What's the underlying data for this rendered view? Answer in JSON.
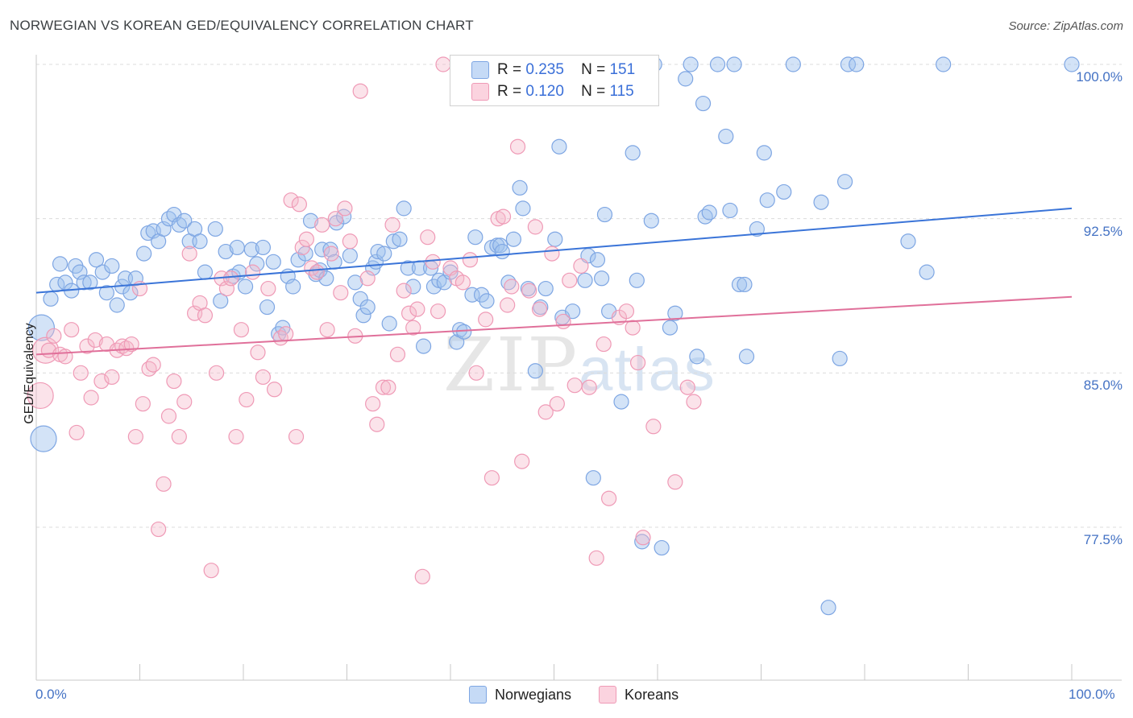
{
  "title": "NORWEGIAN VS KOREAN GED/EQUIVALENCY CORRELATION CHART",
  "source": "Source: ZipAtlas.com",
  "watermark": {
    "zip": "ZIP",
    "atlas": "atlas"
  },
  "legend": {
    "r_label": "R =",
    "n_label": "N =",
    "rows": [
      {
        "r": "0.235",
        "n": "151",
        "color": "#a9c8f0"
      },
      {
        "r": "0.120",
        "n": "115",
        "color": "#f6b8cb"
      }
    ]
  },
  "bottom_legend": [
    {
      "label": "Norwegians",
      "color": "#a9c8f0"
    },
    {
      "label": "Koreans",
      "color": "#f6b8cb"
    }
  ],
  "chart_data": {
    "type": "scatter",
    "title": "NORWEGIAN VS KOREAN GED/EQUIVALENCY CORRELATION CHART",
    "xlabel": "",
    "ylabel": "GED/Equivalency",
    "xlim": [
      0,
      100
    ],
    "ylim": [
      70.5,
      101.2
    ],
    "x_tick_labels": [
      "0.0%",
      "100.0%"
    ],
    "y_ticks": [
      100.0,
      92.5,
      85.0,
      77.5
    ],
    "y_tick_labels": [
      "100.0%",
      "92.5%",
      "85.0%",
      "77.5%"
    ],
    "series": [
      {
        "name": "Norwegians",
        "color": "#3a74d8",
        "fill": "rgba(157,192,238,0.45)",
        "stroke": "#7ea6e3",
        "trend": [
          [
            0,
            88.9
          ],
          [
            100,
            93.0
          ]
        ],
        "points": [
          [
            0.5,
            87.2
          ],
          [
            0.7,
            81.8
          ],
          [
            1.4,
            88.6
          ],
          [
            2,
            89.3
          ],
          [
            2.3,
            90.3
          ],
          [
            2.8,
            89.4
          ],
          [
            3.4,
            89.0
          ],
          [
            3.8,
            90.2
          ],
          [
            4.2,
            89.9
          ],
          [
            4.6,
            89.4
          ],
          [
            5.2,
            89.4
          ],
          [
            5.8,
            90.5
          ],
          [
            6.4,
            89.9
          ],
          [
            6.8,
            88.9
          ],
          [
            7.3,
            90.2
          ],
          [
            7.8,
            88.3
          ],
          [
            8.3,
            89.2
          ],
          [
            8.6,
            89.6
          ],
          [
            9.1,
            88.9
          ],
          [
            9.6,
            89.6
          ],
          [
            10.4,
            90.8
          ],
          [
            10.8,
            91.8
          ],
          [
            11.3,
            91.9
          ],
          [
            11.8,
            91.4
          ],
          [
            12.3,
            92.0
          ],
          [
            12.8,
            92.5
          ],
          [
            13.3,
            92.7
          ],
          [
            13.8,
            92.2
          ],
          [
            14.3,
            92.4
          ],
          [
            14.8,
            91.4
          ],
          [
            15.3,
            92.0
          ],
          [
            15.8,
            91.4
          ],
          [
            16.3,
            89.9
          ],
          [
            17.3,
            92.0
          ],
          [
            17.8,
            88.5
          ],
          [
            18.3,
            90.9
          ],
          [
            19.0,
            89.7
          ],
          [
            19.4,
            91.1
          ],
          [
            19.6,
            89.9
          ],
          [
            20.2,
            89.2
          ],
          [
            20.8,
            91.0
          ],
          [
            21.3,
            90.3
          ],
          [
            21.9,
            91.1
          ],
          [
            22.3,
            88.2
          ],
          [
            22.9,
            90.4
          ],
          [
            23.4,
            86.9
          ],
          [
            23.8,
            87.2
          ],
          [
            24.3,
            89.7
          ],
          [
            24.8,
            89.2
          ],
          [
            25.3,
            90.5
          ],
          [
            26.0,
            90.8
          ],
          [
            26.5,
            92.4
          ],
          [
            27.0,
            89.8
          ],
          [
            27.4,
            90.0
          ],
          [
            27.6,
            91.0
          ],
          [
            28.0,
            89.6
          ],
          [
            28.4,
            91.0
          ],
          [
            28.8,
            90.4
          ],
          [
            29.0,
            92.3
          ],
          [
            29.7,
            92.6
          ],
          [
            30.3,
            90.7
          ],
          [
            30.8,
            89.4
          ],
          [
            31.3,
            88.6
          ],
          [
            31.6,
            87.8
          ],
          [
            32.0,
            88.2
          ],
          [
            32.5,
            90.1
          ],
          [
            32.8,
            90.4
          ],
          [
            33.0,
            90.9
          ],
          [
            33.6,
            90.8
          ],
          [
            34.1,
            87.4
          ],
          [
            34.5,
            91.4
          ],
          [
            35.1,
            91.5
          ],
          [
            35.5,
            93.0
          ],
          [
            35.9,
            90.1
          ],
          [
            36.4,
            89.2
          ],
          [
            37.0,
            90.1
          ],
          [
            37.4,
            86.3
          ],
          [
            38.1,
            90.1
          ],
          [
            38.4,
            89.2
          ],
          [
            38.9,
            89.5
          ],
          [
            39.4,
            89.4
          ],
          [
            40.0,
            89.9
          ],
          [
            40.6,
            86.5
          ],
          [
            40.9,
            87.1
          ],
          [
            41.3,
            87.0
          ],
          [
            42.1,
            88.8
          ],
          [
            42.4,
            91.6
          ],
          [
            43.0,
            88.8
          ],
          [
            43.5,
            88.5
          ],
          [
            44.0,
            91.1
          ],
          [
            44.5,
            91.2
          ],
          [
            44.8,
            91.2
          ],
          [
            45.0,
            90.9
          ],
          [
            45.6,
            89.4
          ],
          [
            46.1,
            91.5
          ],
          [
            46.7,
            94.0
          ],
          [
            47.0,
            93.0
          ],
          [
            47.5,
            89.1
          ],
          [
            48.2,
            85.1
          ],
          [
            48.7,
            88.2
          ],
          [
            49.2,
            89.1
          ],
          [
            50.1,
            91.5
          ],
          [
            50.5,
            96.0
          ],
          [
            50.8,
            87.7
          ],
          [
            51.8,
            88.0
          ],
          [
            53.0,
            89.5
          ],
          [
            53.3,
            90.7
          ],
          [
            53.8,
            79.9
          ],
          [
            54.2,
            90.5
          ],
          [
            54.6,
            89.6
          ],
          [
            54.9,
            92.7
          ],
          [
            55.3,
            88.0
          ],
          [
            56.5,
            83.6
          ],
          [
            57.6,
            95.7
          ],
          [
            58.0,
            89.5
          ],
          [
            58.5,
            76.8
          ],
          [
            59.4,
            92.4
          ],
          [
            59.7,
            100.0
          ],
          [
            60.4,
            76.5
          ],
          [
            61.2,
            87.2
          ],
          [
            61.7,
            87.9
          ],
          [
            62.7,
            99.3
          ],
          [
            63.2,
            100.0
          ],
          [
            63.8,
            85.8
          ],
          [
            64.4,
            98.1
          ],
          [
            64.6,
            92.6
          ],
          [
            65.0,
            92.8
          ],
          [
            65.8,
            100.0
          ],
          [
            66.6,
            96.5
          ],
          [
            67.0,
            92.9
          ],
          [
            67.4,
            100.0
          ],
          [
            67.9,
            89.3
          ],
          [
            68.4,
            89.3
          ],
          [
            68.6,
            85.8
          ],
          [
            69.6,
            92.0
          ],
          [
            70.3,
            95.7
          ],
          [
            70.6,
            93.4
          ],
          [
            72.2,
            93.8
          ],
          [
            73.1,
            100.0
          ],
          [
            75.8,
            93.3
          ],
          [
            77.6,
            85.7
          ],
          [
            78.1,
            94.3
          ],
          [
            78.4,
            100.0
          ],
          [
            79.2,
            100.0
          ],
          [
            84.2,
            91.4
          ],
          [
            86.0,
            89.9
          ],
          [
            87.6,
            100.0
          ],
          [
            100.0,
            100.0
          ],
          [
            76.5,
            73.6
          ]
        ]
      },
      {
        "name": "Koreans",
        "color": "#e0709a",
        "fill": "rgba(246,184,203,0.40)",
        "stroke": "#ef9ab6",
        "trend": [
          [
            0,
            85.9
          ],
          [
            100,
            88.7
          ]
        ],
        "points": [
          [
            0.4,
            83.9
          ],
          [
            0.9,
            86.1
          ],
          [
            1.2,
            86.1
          ],
          [
            1.7,
            86.8
          ],
          [
            2.3,
            85.9
          ],
          [
            2.8,
            85.8
          ],
          [
            3.4,
            87.1
          ],
          [
            3.9,
            82.1
          ],
          [
            4.3,
            85.0
          ],
          [
            4.9,
            86.3
          ],
          [
            5.3,
            83.8
          ],
          [
            5.7,
            86.6
          ],
          [
            6.3,
            84.6
          ],
          [
            6.8,
            86.4
          ],
          [
            7.3,
            84.8
          ],
          [
            7.8,
            86.1
          ],
          [
            8.3,
            86.3
          ],
          [
            8.7,
            86.2
          ],
          [
            9.2,
            86.4
          ],
          [
            9.6,
            81.9
          ],
          [
            10.0,
            89.1
          ],
          [
            10.3,
            83.5
          ],
          [
            10.9,
            85.2
          ],
          [
            11.3,
            85.4
          ],
          [
            11.8,
            77.4
          ],
          [
            12.3,
            79.6
          ],
          [
            12.8,
            82.9
          ],
          [
            13.3,
            84.6
          ],
          [
            13.8,
            81.9
          ],
          [
            14.3,
            83.6
          ],
          [
            14.8,
            90.8
          ],
          [
            15.3,
            87.9
          ],
          [
            15.8,
            88.4
          ],
          [
            16.3,
            87.8
          ],
          [
            16.9,
            75.4
          ],
          [
            17.4,
            85.0
          ],
          [
            17.9,
            89.6
          ],
          [
            18.4,
            89.1
          ],
          [
            18.8,
            89.6
          ],
          [
            19.3,
            81.9
          ],
          [
            19.8,
            87.1
          ],
          [
            20.3,
            83.7
          ],
          [
            20.9,
            89.9
          ],
          [
            21.4,
            86.0
          ],
          [
            21.9,
            84.8
          ],
          [
            22.4,
            89.1
          ],
          [
            23.0,
            84.2
          ],
          [
            23.6,
            86.7
          ],
          [
            24.1,
            86.9
          ],
          [
            24.6,
            93.4
          ],
          [
            25.1,
            81.9
          ],
          [
            25.4,
            93.2
          ],
          [
            25.7,
            91.1
          ],
          [
            26.1,
            91.5
          ],
          [
            26.6,
            90.1
          ],
          [
            27.1,
            89.9
          ],
          [
            27.6,
            92.2
          ],
          [
            28.1,
            87.1
          ],
          [
            28.5,
            90.8
          ],
          [
            28.9,
            92.5
          ],
          [
            29.4,
            88.9
          ],
          [
            29.8,
            93.0
          ],
          [
            30.3,
            91.4
          ],
          [
            30.8,
            86.8
          ],
          [
            31.3,
            98.7
          ],
          [
            32.0,
            89.6
          ],
          [
            32.5,
            83.5
          ],
          [
            32.9,
            82.5
          ],
          [
            33.5,
            84.3
          ],
          [
            34.0,
            84.3
          ],
          [
            34.4,
            92.2
          ],
          [
            34.9,
            85.9
          ],
          [
            35.5,
            89.0
          ],
          [
            36.0,
            87.9
          ],
          [
            36.4,
            87.2
          ],
          [
            36.8,
            88.1
          ],
          [
            37.3,
            75.1
          ],
          [
            37.8,
            91.6
          ],
          [
            38.3,
            90.4
          ],
          [
            38.8,
            88.0
          ],
          [
            39.3,
            100.0
          ],
          [
            40.0,
            90.1
          ],
          [
            40.6,
            89.6
          ],
          [
            41.2,
            89.4
          ],
          [
            41.9,
            90.5
          ],
          [
            42.5,
            85.0
          ],
          [
            43.4,
            87.6
          ],
          [
            44.0,
            79.9
          ],
          [
            44.6,
            92.5
          ],
          [
            45.1,
            92.6
          ],
          [
            45.5,
            88.3
          ],
          [
            45.9,
            89.2
          ],
          [
            46.5,
            96.0
          ],
          [
            46.9,
            80.7
          ],
          [
            47.6,
            89.0
          ],
          [
            48.2,
            92.1
          ],
          [
            48.6,
            88.1
          ],
          [
            49.2,
            83.1
          ],
          [
            49.8,
            90.8
          ],
          [
            50.3,
            83.5
          ],
          [
            50.9,
            87.5
          ],
          [
            51.5,
            89.5
          ],
          [
            52.0,
            84.4
          ],
          [
            52.6,
            90.2
          ],
          [
            53.4,
            84.3
          ],
          [
            54.1,
            76.0
          ],
          [
            54.8,
            86.4
          ],
          [
            55.3,
            78.9
          ],
          [
            56.3,
            87.7
          ],
          [
            57.0,
            88.0
          ],
          [
            57.6,
            87.2
          ],
          [
            58.1,
            85.5
          ],
          [
            58.6,
            77.0
          ],
          [
            59.6,
            82.4
          ],
          [
            61.7,
            79.7
          ],
          [
            62.9,
            84.3
          ],
          [
            63.5,
            83.6
          ]
        ]
      }
    ]
  }
}
